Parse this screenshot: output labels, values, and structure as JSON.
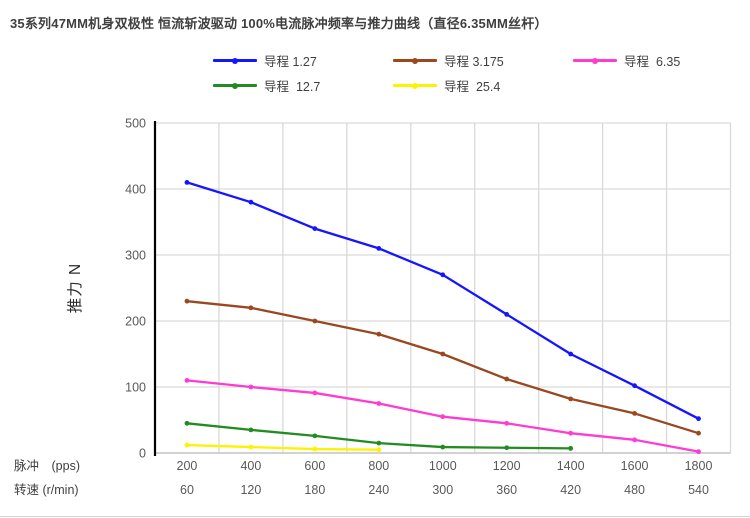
{
  "title": "35系列47MM机身双极性 恒流斩波驱动 100%电流脉冲频率与推力曲线（直径6.35MM丝杆）",
  "chart_data": {
    "type": "line",
    "title": "35系列47MM机身双极性 恒流斩波驱动 100%电流脉冲频率与推力曲线（直径6.35MM丝杆）",
    "ylabel": "推力 N",
    "ylim": [
      0,
      500
    ],
    "yticks": [
      0,
      100,
      200,
      300,
      400,
      500
    ],
    "grid": true,
    "legend_position": "top",
    "x_axis_rows": [
      {
        "label": "脉冲　(pps)",
        "values": [
          200,
          400,
          600,
          800,
          1000,
          1200,
          1400,
          1600,
          1800
        ]
      },
      {
        "label": "转速 (r/min)",
        "values": [
          60,
          120,
          180,
          240,
          300,
          360,
          420,
          480,
          540
        ]
      }
    ],
    "series": [
      {
        "name": "导程 1.27",
        "color": "#1515ff",
        "values": [
          410,
          380,
          340,
          310,
          270,
          210,
          150,
          102,
          52
        ]
      },
      {
        "name": "导程 3.175",
        "color": "#9a4820",
        "values": [
          230,
          220,
          200,
          180,
          150,
          112,
          82,
          60,
          30
        ]
      },
      {
        "name": "导程  6.35",
        "color": "#ff3bd0",
        "values": [
          110,
          100,
          91,
          75,
          55,
          45,
          30,
          20,
          2
        ]
      },
      {
        "name": "导程  12.7",
        "color": "#228b22",
        "values": [
          45,
          35,
          26,
          15,
          9,
          8,
          7
        ]
      },
      {
        "name": "导程  25.4",
        "color": "#fef200",
        "values": [
          12,
          9,
          6,
          5
        ]
      }
    ]
  },
  "colors": {
    "title_text": "#3f3f3f",
    "tick_text": "#595959",
    "axis_row_label_text": "#3f3f3f",
    "gridline": "#d9d9d9",
    "y_axis": "#000000",
    "x_axis": "#c3c3c3",
    "page_bottom_edge": "#d4d4d4"
  }
}
